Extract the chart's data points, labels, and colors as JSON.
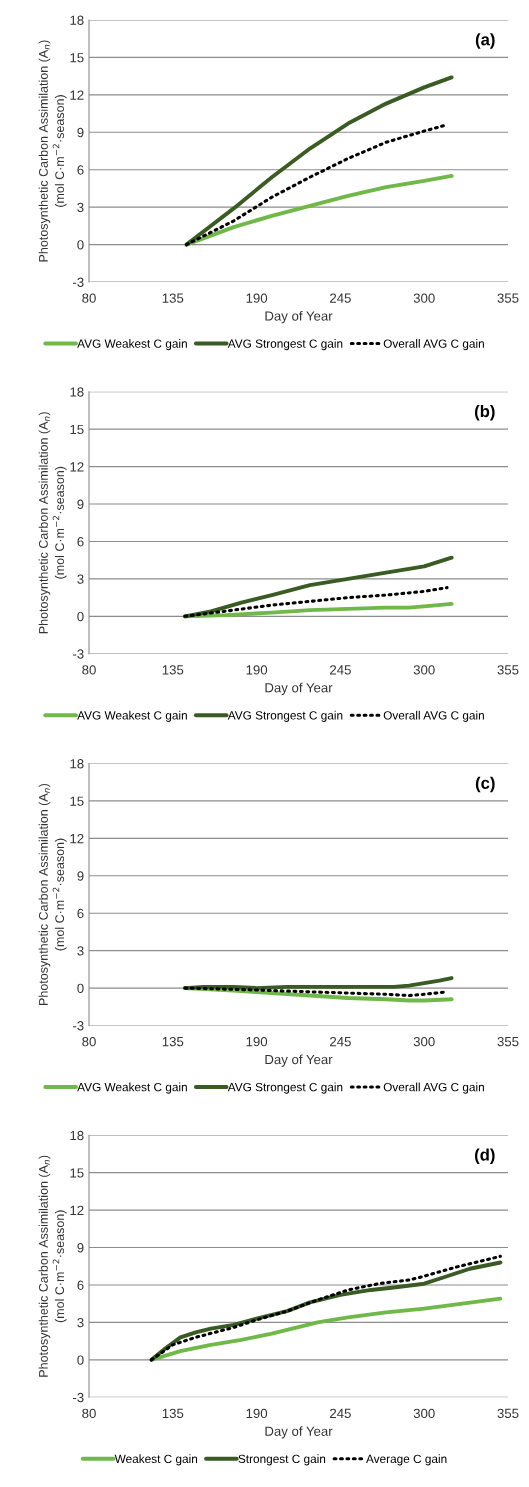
{
  "chart_data": [
    {
      "type": "line",
      "xlabel": "Day of Year",
      "ylabel": "Photosynthetic Carbon Assimilation (A$_{n}$)\n(mol C·m$^{−2}$·season)",
      "annotations": [
        "(a)"
      ],
      "xlim": [
        80,
        355
      ],
      "xticks": [
        80,
        135,
        190,
        245,
        300,
        355
      ],
      "ylim": [
        -3,
        18
      ],
      "yticks": [
        -3,
        0,
        3,
        6,
        9,
        12,
        15,
        18
      ],
      "grid": "y",
      "legend": "bottom",
      "marker": "none",
      "series": [
        {
          "name": "AVG Weakest C gain",
          "color": "#70b84a",
          "line_style": "solid",
          "x": [
            144,
            175,
            200,
            225,
            250,
            275,
            300,
            318
          ],
          "values": [
            0,
            1.4,
            2.3,
            3.1,
            3.9,
            4.6,
            5.1,
            5.5
          ]
        },
        {
          "name": "AVG Strongest C gain",
          "color": "#3b5b24",
          "line_style": "solid",
          "x": [
            144,
            175,
            200,
            225,
            250,
            275,
            300,
            318
          ],
          "values": [
            0,
            2.9,
            5.4,
            7.7,
            9.7,
            11.3,
            12.6,
            13.4
          ]
        },
        {
          "name": "Overall AVG C gain",
          "color": "#000000",
          "line_style": "dotted",
          "x": [
            144,
            175,
            200,
            225,
            250,
            275,
            300,
            315
          ],
          "values": [
            0,
            1.9,
            3.8,
            5.4,
            6.9,
            8.2,
            9.1,
            9.6
          ]
        }
      ]
    },
    {
      "type": "line",
      "xlabel": "Day of Year",
      "ylabel": "Photosynthetic Carbon Assimilation (A$_{n}$)\n(mol C·m$^{−2}$·season)",
      "annotations": [
        "(b)"
      ],
      "xlim": [
        80,
        355
      ],
      "xticks": [
        80,
        135,
        190,
        245,
        300,
        355
      ],
      "ylim": [
        -3,
        18
      ],
      "yticks": [
        -3,
        0,
        3,
        6,
        9,
        12,
        15,
        18
      ],
      "grid": "y",
      "legend": "bottom",
      "marker": "none",
      "series": [
        {
          "name": "AVG Weakest C gain",
          "color": "#70b84a",
          "line_style": "solid",
          "x": [
            143,
            170,
            200,
            225,
            250,
            275,
            290,
            300,
            318
          ],
          "values": [
            0,
            0.1,
            0.3,
            0.5,
            0.6,
            0.7,
            0.7,
            0.8,
            1.0
          ]
        },
        {
          "name": "AVG Strongest C gain",
          "color": "#3b5b24",
          "line_style": "solid",
          "x": [
            143,
            160,
            180,
            200,
            225,
            250,
            275,
            290,
            300,
            318
          ],
          "values": [
            0,
            0.4,
            1.1,
            1.7,
            2.5,
            3.0,
            3.5,
            3.8,
            4.0,
            4.7
          ]
        },
        {
          "name": "Overall AVG C gain",
          "color": "#000000",
          "line_style": "dotted",
          "x": [
            143,
            175,
            200,
            225,
            250,
            275,
            300,
            315
          ],
          "values": [
            0,
            0.5,
            0.9,
            1.2,
            1.5,
            1.7,
            2.0,
            2.3
          ]
        }
      ]
    },
    {
      "type": "line",
      "xlabel": "Day of Year",
      "ylabel": "Photosynthetic Carbon Assimilation (A$_{n}$)\n(mol C·m$^{−2}$·season)",
      "annotations": [
        "(c)"
      ],
      "xlim": [
        80,
        355
      ],
      "xticks": [
        80,
        135,
        190,
        245,
        300,
        355
      ],
      "ylim": [
        -3,
        18
      ],
      "yticks": [
        -3,
        0,
        3,
        6,
        9,
        12,
        15,
        18
      ],
      "grid": "y",
      "legend": "bottom",
      "marker": "none",
      "series": [
        {
          "name": "AVG Weakest C gain",
          "color": "#70b84a",
          "line_style": "solid",
          "x": [
            143,
            175,
            200,
            225,
            250,
            275,
            290,
            300,
            318
          ],
          "values": [
            0,
            -0.2,
            -0.4,
            -0.6,
            -0.8,
            -0.9,
            -1.0,
            -1.0,
            -0.9
          ]
        },
        {
          "name": "AVG Strongest C gain",
          "color": "#3b5b24",
          "line_style": "solid",
          "x": [
            143,
            155,
            175,
            190,
            210,
            250,
            280,
            290,
            300,
            310,
            318
          ],
          "values": [
            0,
            0.1,
            0.1,
            0,
            0.1,
            0.1,
            0.1,
            0.2,
            0.4,
            0.6,
            0.8
          ]
        },
        {
          "name": "Overall AVG C gain",
          "color": "#000000",
          "line_style": "dotted",
          "x": [
            143,
            175,
            200,
            225,
            250,
            275,
            290,
            300,
            315
          ],
          "values": [
            0,
            -0.1,
            -0.2,
            -0.3,
            -0.4,
            -0.5,
            -0.6,
            -0.5,
            -0.3
          ]
        }
      ]
    },
    {
      "type": "line",
      "xlabel": "Day of Year",
      "ylabel": "Photosynthetic Carbon Assimilation (A$_{n}$)\n(mol C·m$^{−2}$·season)",
      "annotations": [
        "(d)"
      ],
      "xlim": [
        80,
        355
      ],
      "xticks": [
        80,
        135,
        190,
        245,
        300,
        355
      ],
      "ylim": [
        -3,
        18
      ],
      "yticks": [
        -3,
        0,
        3,
        6,
        9,
        12,
        15,
        18
      ],
      "grid": "y",
      "legend": "bottom",
      "marker": "none",
      "series": [
        {
          "name": "Weakest C gain",
          "color": "#70b84a",
          "line_style": "solid",
          "x": [
            121,
            140,
            160,
            180,
            200,
            210,
            230,
            250,
            275,
            300,
            325,
            350
          ],
          "values": [
            0,
            0.7,
            1.2,
            1.6,
            2.1,
            2.4,
            3.0,
            3.4,
            3.8,
            4.1,
            4.5,
            4.9
          ]
        },
        {
          "name": "Strongest C gain",
          "color": "#3b5b24",
          "line_style": "solid",
          "x": [
            121,
            130,
            140,
            150,
            160,
            175,
            190,
            210,
            225,
            245,
            265,
            280,
            300,
            315,
            330,
            350
          ],
          "values": [
            0,
            0.9,
            1.8,
            2.2,
            2.5,
            2.8,
            3.3,
            3.9,
            4.6,
            5.2,
            5.6,
            5.8,
            6.1,
            6.7,
            7.3,
            7.8
          ]
        },
        {
          "name": "Average C gain",
          "color": "#000000",
          "line_style": "dotted",
          "x": [
            121,
            135,
            150,
            175,
            190,
            210,
            230,
            250,
            270,
            290,
            300,
            320,
            340,
            350
          ],
          "values": [
            0,
            1.2,
            1.8,
            2.6,
            3.2,
            3.9,
            4.8,
            5.6,
            6.1,
            6.4,
            6.7,
            7.4,
            8.0,
            8.3
          ]
        }
      ]
    }
  ]
}
